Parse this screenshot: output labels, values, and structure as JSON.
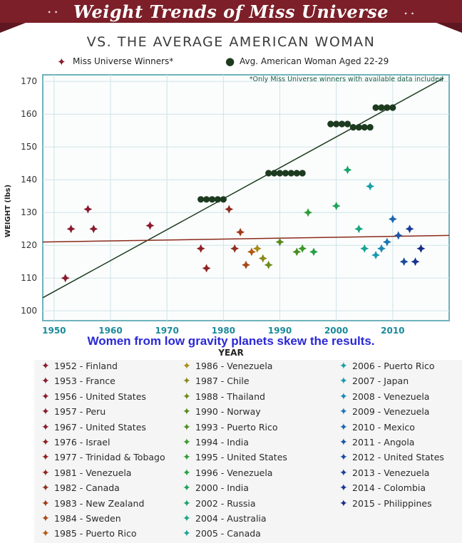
{
  "header": {
    "title": "Weight Trends of Miss Universe",
    "subtitle": "VS. THE AVERAGE AMERICAN WOMAN",
    "caption": "Women from low gravity planets skew the results."
  },
  "legend": {
    "miss_universe": "Miss Universe Winners*",
    "avg_woman": "Avg. American Woman Aged 22-29",
    "note": "*Only Miss Universe winners with available data included"
  },
  "colors": {
    "banner": "#7c1f28",
    "frame": "#6fb3bd",
    "avg_dots": "#1d3b1f",
    "trend_line": "#1d3b1f",
    "mu_trend_line": "#8a2a1a"
  },
  "chart_data": {
    "type": "scatter",
    "xlabel": "YEAR",
    "ylabel": "WEIGHT (lbs)",
    "xlim": [
      1948,
      2020
    ],
    "ylim": [
      97,
      172
    ],
    "xticks": [
      "1950",
      "1960",
      "1970",
      "1980",
      "1990",
      "2000",
      "2010"
    ],
    "yticks": [
      "100",
      "110",
      "120",
      "130",
      "140",
      "150",
      "160",
      "170"
    ],
    "grid": true,
    "series": [
      {
        "name": "Miss Universe Winners*",
        "marker": "star",
        "points": [
          {
            "x": 1952,
            "y": 110,
            "label": "1952 - Finland",
            "color": "#8b1a2e"
          },
          {
            "x": 1953,
            "y": 125,
            "label": "1953 - France",
            "color": "#8b1a2e"
          },
          {
            "x": 1956,
            "y": 131,
            "label": "1956 - United States",
            "color": "#8b1a2e"
          },
          {
            "x": 1957,
            "y": 125,
            "label": "1957 - Peru",
            "color": "#8b1a2e"
          },
          {
            "x": 1967,
            "y": 126,
            "label": "1967 - United States",
            "color": "#8b1a2e"
          },
          {
            "x": 1976,
            "y": 119,
            "label": "1976 - Israel",
            "color": "#8e2222"
          },
          {
            "x": 1977,
            "y": 113,
            "label": "1977 - Trinidad & Tobago",
            "color": "#8e2222"
          },
          {
            "x": 1981,
            "y": 131,
            "label": "1981 - Venezuela",
            "color": "#8e2a1e"
          },
          {
            "x": 1982,
            "y": 119,
            "label": "1982 - Canada",
            "color": "#8e3020"
          },
          {
            "x": 1983,
            "y": 124,
            "label": "1983 - New Zealand",
            "color": "#a03a18"
          },
          {
            "x": 1984,
            "y": 114,
            "label": "1984 - Sweden",
            "color": "#a84818"
          },
          {
            "x": 1985,
            "y": 118,
            "label": "1985 - Puerto Rico",
            "color": "#b45a14"
          },
          {
            "x": 1986,
            "y": 119,
            "label": "1986 - Venezuela",
            "color": "#a88a18"
          },
          {
            "x": 1987,
            "y": 116,
            "label": "1987 - Chile",
            "color": "#8a8a1a"
          },
          {
            "x": 1988,
            "y": 114,
            "label": "1988 - Thailand",
            "color": "#6e8a1a"
          },
          {
            "x": 1990,
            "y": 121,
            "label": "1990 - Norway",
            "color": "#5a8a1e"
          },
          {
            "x": 1993,
            "y": 118,
            "label": "1993 - Puerto Rico",
            "color": "#4a8e22"
          },
          {
            "x": 1994,
            "y": 119,
            "label": "1994 - India",
            "color": "#3a9a2a"
          },
          {
            "x": 1995,
            "y": 130,
            "label": "1995 - United States",
            "color": "#2e9e38"
          },
          {
            "x": 1996,
            "y": 118,
            "label": "1996 - Venezuela",
            "color": "#26a046"
          },
          {
            "x": 2000,
            "y": 132,
            "label": "2000 - India",
            "color": "#1ea25a"
          },
          {
            "x": 2002,
            "y": 143,
            "label": "2002 - Russia",
            "color": "#1aa46c"
          },
          {
            "x": 2004,
            "y": 125,
            "label": "2004 - Australia",
            "color": "#1aa480"
          },
          {
            "x": 2005,
            "y": 119,
            "label": "2005 - Canada",
            "color": "#1aa494"
          },
          {
            "x": 2006,
            "y": 138,
            "label": "2006 - Puerto Rico",
            "color": "#1aa0a6"
          },
          {
            "x": 2007,
            "y": 117,
            "label": "2007 - Japan",
            "color": "#1a98b0"
          },
          {
            "x": 2008,
            "y": 119,
            "label": "2008 - Venezuela",
            "color": "#1a88b4"
          },
          {
            "x": 2009,
            "y": 121,
            "label": "2009 - Venezuela",
            "color": "#1a78b4"
          },
          {
            "x": 2010,
            "y": 128,
            "label": "2010 - Mexico",
            "color": "#1a66b0"
          },
          {
            "x": 2011,
            "y": 123,
            "label": "2011 - Angola",
            "color": "#1a56a8"
          },
          {
            "x": 2012,
            "y": 115,
            "label": "2012 - United States",
            "color": "#1a4aa0"
          },
          {
            "x": 2013,
            "y": 125,
            "label": "2013 - Venezuela",
            "color": "#1a3e98"
          },
          {
            "x": 2014,
            "y": 115,
            "label": "2014 - Colombia",
            "color": "#1a3490"
          },
          {
            "x": 2015,
            "y": 119,
            "label": "2015 - Philippines",
            "color": "#1a2c88"
          }
        ]
      },
      {
        "name": "Avg. American Woman Aged 22-29",
        "marker": "circle",
        "points": [
          {
            "x": 1976,
            "y": 134
          },
          {
            "x": 1977,
            "y": 134
          },
          {
            "x": 1978,
            "y": 134
          },
          {
            "x": 1979,
            "y": 134
          },
          {
            "x": 1980,
            "y": 134
          },
          {
            "x": 1988,
            "y": 142
          },
          {
            "x": 1989,
            "y": 142
          },
          {
            "x": 1990,
            "y": 142
          },
          {
            "x": 1991,
            "y": 142
          },
          {
            "x": 1992,
            "y": 142
          },
          {
            "x": 1993,
            "y": 142
          },
          {
            "x": 1994,
            "y": 142
          },
          {
            "x": 1999,
            "y": 157
          },
          {
            "x": 2000,
            "y": 157
          },
          {
            "x": 2001,
            "y": 157
          },
          {
            "x": 2002,
            "y": 157
          },
          {
            "x": 2003,
            "y": 156
          },
          {
            "x": 2004,
            "y": 156
          },
          {
            "x": 2005,
            "y": 156
          },
          {
            "x": 2006,
            "y": 156
          },
          {
            "x": 2007,
            "y": 162
          },
          {
            "x": 2008,
            "y": 162
          },
          {
            "x": 2009,
            "y": 162
          },
          {
            "x": 2010,
            "y": 162
          }
        ]
      }
    ],
    "trend_lines": [
      {
        "from": [
          1948,
          104
        ],
        "to": [
          2019,
          171
        ],
        "color": "#1d3b1f"
      },
      {
        "from": [
          1948,
          121
        ],
        "to": [
          2020,
          123
        ],
        "color": "#8a2a1a"
      }
    ]
  }
}
